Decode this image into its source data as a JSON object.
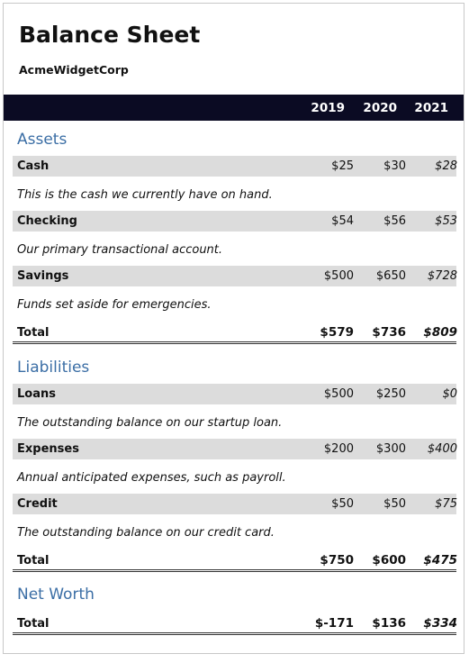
{
  "title": "Balance Sheet",
  "company": "AcmeWidgetCorp",
  "years": [
    "2019",
    "2020",
    "2021"
  ],
  "assets": {
    "title": "Assets",
    "rows": [
      {
        "label": "Cash",
        "values": [
          "$25",
          "$30",
          "$28"
        ],
        "description": "This is the cash we currently have on hand."
      },
      {
        "label": "Checking",
        "values": [
          "$54",
          "$56",
          "$53"
        ],
        "description": "Our primary transactional account."
      },
      {
        "label": "Savings",
        "values": [
          "$500",
          "$650",
          "$728"
        ],
        "description": "Funds set aside for emergencies."
      }
    ],
    "total": {
      "label": "Total",
      "values": [
        "$579",
        "$736",
        "$809"
      ]
    }
  },
  "liabilities": {
    "title": "Liabilities",
    "rows": [
      {
        "label": "Loans",
        "values": [
          "$500",
          "$250",
          "$0"
        ],
        "description": "The outstanding balance on our startup loan."
      },
      {
        "label": "Expenses",
        "values": [
          "$200",
          "$300",
          "$400"
        ],
        "description": "Annual anticipated expenses, such as payroll."
      },
      {
        "label": "Credit",
        "values": [
          "$50",
          "$50",
          "$75"
        ],
        "description": "The outstanding balance on our credit card."
      }
    ],
    "total": {
      "label": "Total",
      "values": [
        "$750",
        "$600",
        "$475"
      ]
    }
  },
  "net_worth": {
    "title": "Net Worth",
    "total": {
      "label": "Total",
      "values": [
        "$-171",
        "$136",
        "$334"
      ]
    }
  },
  "colors": {
    "header_bg": "#0b0b23",
    "section_title": "#3b6ea5",
    "row_bg": "#dcdcdc"
  }
}
